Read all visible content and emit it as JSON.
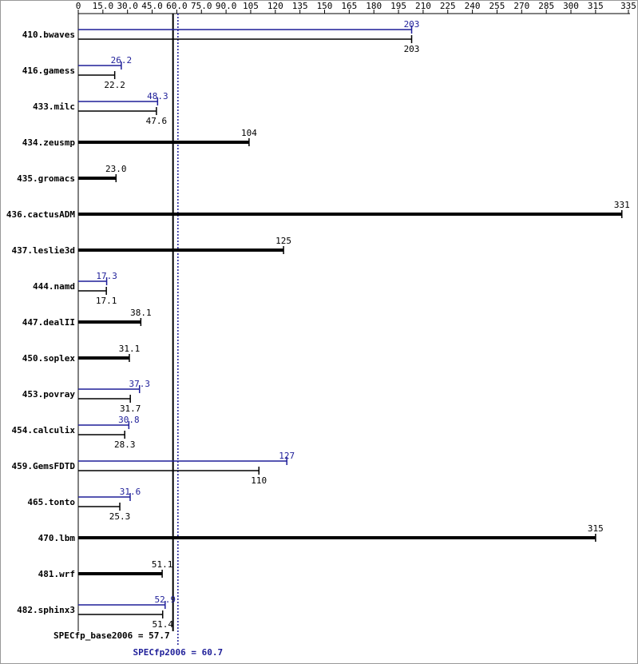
{
  "chart_data": {
    "type": "bar",
    "orientation": "horizontal",
    "categories": [
      "410.bwaves",
      "416.gamess",
      "433.milc",
      "434.zeusmp",
      "435.gromacs",
      "436.cactusADM",
      "437.leslie3d",
      "444.namd",
      "447.dealII",
      "450.soplex",
      "453.povray",
      "454.calculix",
      "459.GemsFDTD",
      "465.tonto",
      "470.lbm",
      "481.wrf",
      "482.sphinx3"
    ],
    "series": [
      {
        "color": "#000000",
        "values": [
          203,
          22.2,
          47.6,
          104,
          23,
          331,
          125,
          17.1,
          38.1,
          31.1,
          31.7,
          28.3,
          110,
          25.3,
          315,
          51.1,
          51.4
        ],
        "value_labels": [
          "203",
          "22.2",
          "47.6",
          "104",
          "23.0",
          "331",
          "125",
          "17.1",
          "38.1",
          "31.1",
          "31.7",
          "28.3",
          "110",
          "25.3",
          "315",
          "51.1",
          "51.4"
        ]
      },
      {
        "color": "#1f1f99",
        "values": [
          203,
          26.2,
          48.3,
          null,
          null,
          null,
          null,
          17.3,
          null,
          null,
          37.3,
          30.8,
          127,
          31.6,
          null,
          null,
          52.9
        ],
        "value_labels": [
          "203",
          "26.2",
          "48.3",
          null,
          null,
          null,
          null,
          "17.3",
          null,
          null,
          "37.3",
          "30.8",
          "127",
          "31.6",
          null,
          null,
          "52.9"
        ]
      }
    ],
    "xlim": [
      0,
      335
    ],
    "xticks": [
      0,
      {
        "value": 15,
        "label": "15.0"
      },
      {
        "value": 30,
        "label": "30.0"
      },
      {
        "value": 45,
        "label": "45.0"
      },
      {
        "value": 60,
        "label": "60.0"
      },
      {
        "value": 75,
        "label": "75.0"
      },
      {
        "value": 90,
        "label": "90.0"
      },
      105,
      120,
      135,
      150,
      165,
      180,
      195,
      210,
      225,
      240,
      255,
      270,
      285,
      300,
      315,
      335
    ],
    "reference_lines": [
      {
        "label": "SPECfp_base2006 = 57.7",
        "value": 57.7,
        "color": "#000000",
        "style": "solid"
      },
      {
        "label": "SPECfp2006 = 60.7",
        "value": 60.7,
        "color": "#1f1f99",
        "style": "dotted"
      }
    ]
  }
}
